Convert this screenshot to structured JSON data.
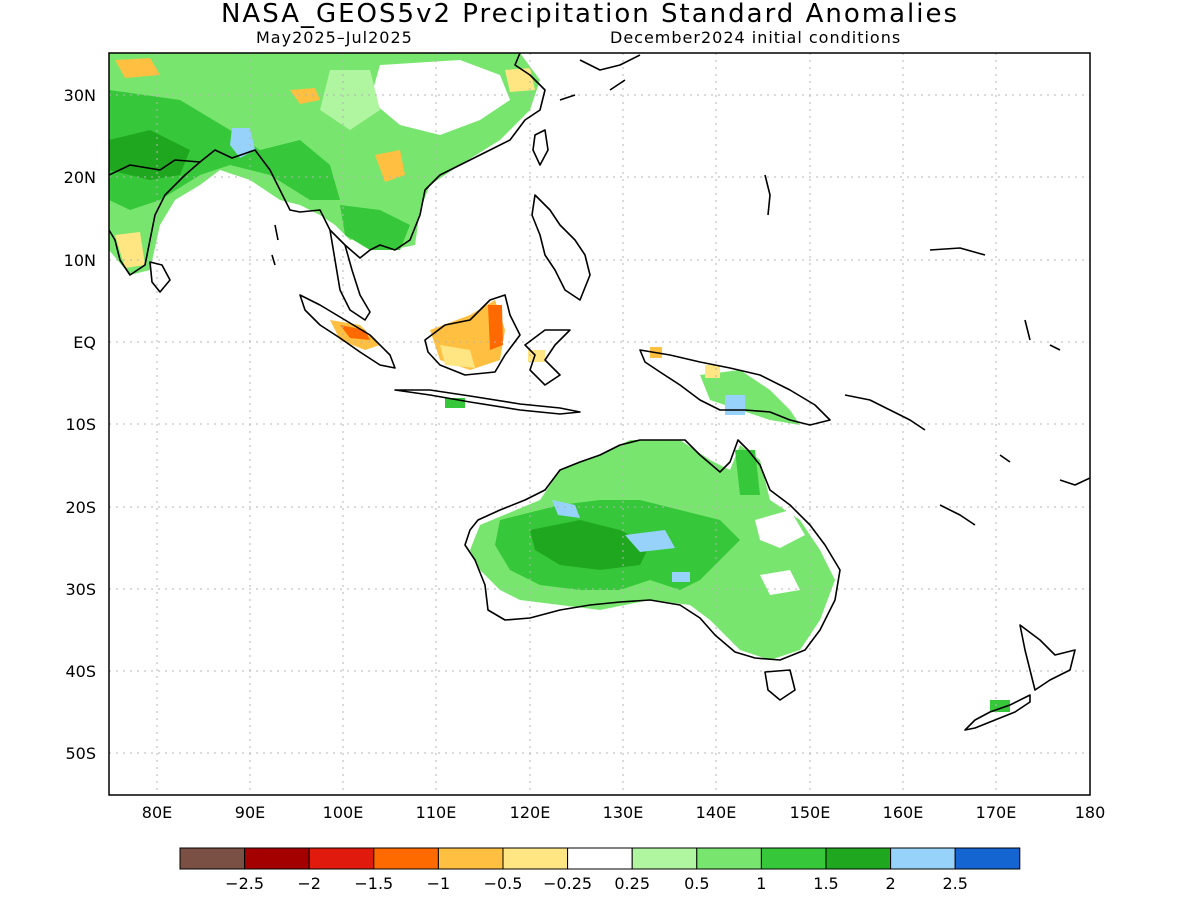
{
  "header": {
    "title": "NASA_GEOS5v2 Precipitation Standard Anomalies",
    "period": "May2025–Jul2025",
    "initial_conditions": "December2024 initial conditions"
  },
  "axes": {
    "lat_labels": [
      "30N",
      "20N",
      "10N",
      "EQ",
      "10S",
      "20S",
      "30S",
      "40S",
      "50S"
    ],
    "lon_labels": [
      "80E",
      "90E",
      "100E",
      "110E",
      "120E",
      "130E",
      "140E",
      "150E",
      "160E",
      "170E",
      "180"
    ]
  },
  "colorbar": {
    "colors": [
      "#7a5044",
      "#a50000",
      "#e01b0d",
      "#ff6a00",
      "#ffbf40",
      "#ffe682",
      "#ffffff",
      "#b0f5a0",
      "#78e66e",
      "#37c73a",
      "#1fa81f",
      "#96d2fa",
      "#1464d2"
    ],
    "labels": [
      "−2.5",
      "−2",
      "−1.5",
      "−1",
      "−0.5",
      "−0.25",
      "0.25",
      "0.5",
      "1",
      "1.5",
      "2",
      "2.5"
    ]
  }
}
